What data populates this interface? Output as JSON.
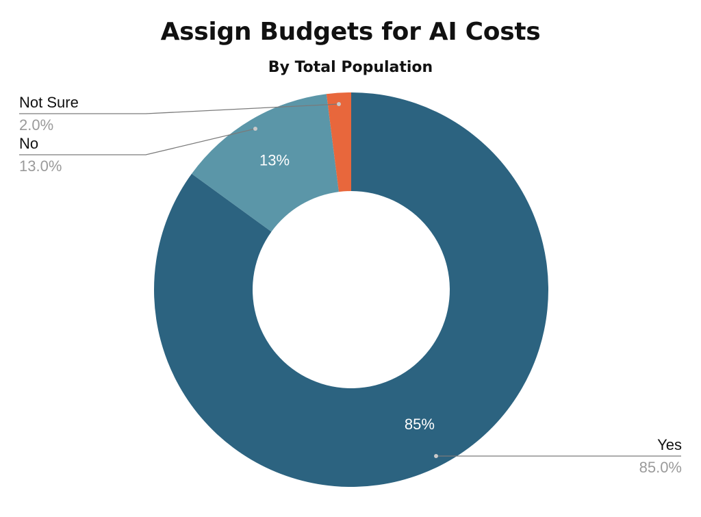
{
  "chart_data": {
    "type": "pie",
    "donut": true,
    "title": "Assign Budgets for AI Costs",
    "subtitle": "By Total Population",
    "slices": [
      {
        "label": "Yes",
        "value": 85.0,
        "inner_label": "85%",
        "callout_value": "85.0%",
        "color": "#2C6380"
      },
      {
        "label": "No",
        "value": 13.0,
        "inner_label": "13%",
        "callout_value": "13.0%",
        "color": "#5B96A8"
      },
      {
        "label": "Not Sure",
        "value": 2.0,
        "inner_label": "",
        "callout_value": "2.0%",
        "color": "#E8673C"
      }
    ],
    "colors": {
      "callout_label": "#111111",
      "callout_value": "#9a9a9a",
      "leader_line": "#7a7a7a",
      "inner_label": "#ffffff"
    }
  }
}
